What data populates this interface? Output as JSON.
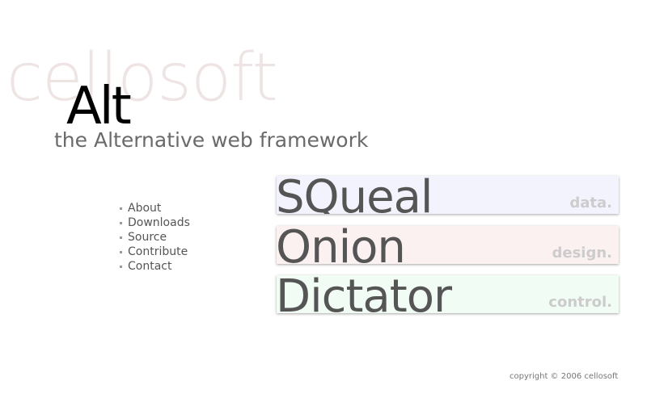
{
  "header": {
    "logo_text": "cellosoft",
    "title": "Alt",
    "tagline": "the Alternative web framework"
  },
  "nav": {
    "items": [
      {
        "label": "About"
      },
      {
        "label": "Downloads"
      },
      {
        "label": "Source"
      },
      {
        "label": "Contribute"
      },
      {
        "label": "Contact"
      }
    ]
  },
  "panels": [
    {
      "name": "SQueal",
      "tag": "data.",
      "color": "#f3f3fd"
    },
    {
      "name": "Onion",
      "tag": "design.",
      "color": "#fcf1f1"
    },
    {
      "name": "Dictator",
      "tag": "control.",
      "color": "#f1fcf5"
    }
  ],
  "footer": {
    "copyright": "copyright © 2006 cellosoft"
  }
}
